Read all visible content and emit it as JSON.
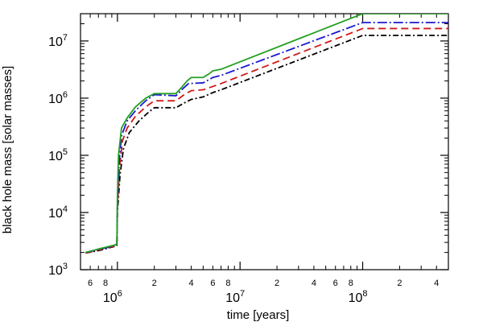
{
  "chart_data": {
    "type": "line",
    "title": "",
    "xlabel": "time [years]",
    "ylabel": "black hole mass [solar masses]",
    "xscale": "log",
    "yscale": "log",
    "xlim": [
      500000,
      500000000
    ],
    "ylim": [
      1000,
      30000000
    ],
    "grid": false,
    "legend": "none",
    "x_major_ticks": [
      {
        "value": 1000000,
        "base": "10",
        "exp": "6"
      },
      {
        "value": 10000000,
        "base": "10",
        "exp": "7"
      },
      {
        "value": 100000000,
        "base": "10",
        "exp": "8"
      }
    ],
    "x_minor_ticks": [
      {
        "value": 600000,
        "label": "6"
      },
      {
        "value": 800000,
        "label": "8"
      },
      {
        "value": 2000000,
        "label": "2"
      },
      {
        "value": 4000000,
        "label": "4"
      },
      {
        "value": 6000000,
        "label": "6"
      },
      {
        "value": 8000000,
        "label": "8"
      },
      {
        "value": 20000000,
        "label": "2"
      },
      {
        "value": 40000000,
        "label": "4"
      },
      {
        "value": 60000000,
        "label": "6"
      },
      {
        "value": 80000000,
        "label": "8"
      },
      {
        "value": 200000000,
        "label": "2"
      },
      {
        "value": 400000000,
        "label": "4"
      }
    ],
    "y_major_ticks": [
      {
        "value": 1000,
        "base": "10",
        "exp": "3"
      },
      {
        "value": 10000,
        "base": "10",
        "exp": "4"
      },
      {
        "value": 100000,
        "base": "10",
        "exp": "5"
      },
      {
        "value": 1000000,
        "base": "10",
        "exp": "6"
      },
      {
        "value": 10000000,
        "base": "10",
        "exp": "7"
      }
    ],
    "series": [
      {
        "color": "#22a022",
        "dash": "solid",
        "points": [
          [
            550000,
            2000
          ],
          [
            700000,
            2300
          ],
          [
            950000,
            2700
          ],
          [
            990000,
            2800
          ],
          [
            1000000,
            20000
          ],
          [
            1020000,
            100000
          ],
          [
            1080000,
            300000
          ],
          [
            1200000,
            450000
          ],
          [
            1400000,
            700000
          ],
          [
            1700000,
            1000000
          ],
          [
            2000000,
            1200000
          ],
          [
            3000000,
            1200000
          ],
          [
            3300000,
            1500000
          ],
          [
            3700000,
            2000000
          ],
          [
            4000000,
            2300000
          ],
          [
            5000000,
            2300000
          ],
          [
            5500000,
            2600000
          ],
          [
            6000000,
            3000000
          ],
          [
            7000000,
            3200000
          ],
          [
            100000000,
            30000000
          ],
          [
            500000000,
            30000000
          ]
        ]
      },
      {
        "color": "#1a1ad0",
        "dash": "long-dash-dot",
        "points": [
          [
            550000,
            2000
          ],
          [
            700000,
            2250
          ],
          [
            950000,
            2650
          ],
          [
            990000,
            2700
          ],
          [
            1000000,
            15000
          ],
          [
            1030000,
            70000
          ],
          [
            1080000,
            220000
          ],
          [
            1200000,
            400000
          ],
          [
            1400000,
            600000
          ],
          [
            1700000,
            900000
          ],
          [
            2000000,
            1150000
          ],
          [
            3000000,
            1100000
          ],
          [
            3400000,
            1450000
          ],
          [
            3800000,
            1800000
          ],
          [
            5000000,
            1850000
          ],
          [
            6000000,
            2300000
          ],
          [
            7000000,
            2500000
          ],
          [
            100000000,
            21000000
          ],
          [
            500000000,
            21000000
          ]
        ]
      },
      {
        "color": "#d01a1a",
        "dash": "dash",
        "points": [
          [
            550000,
            1950
          ],
          [
            700000,
            2200
          ],
          [
            950000,
            2600
          ],
          [
            990000,
            2650
          ],
          [
            1000000,
            12000
          ],
          [
            1040000,
            60000
          ],
          [
            1100000,
            180000
          ],
          [
            1200000,
            300000
          ],
          [
            1400000,
            480000
          ],
          [
            1700000,
            700000
          ],
          [
            2000000,
            900000
          ],
          [
            3000000,
            900000
          ],
          [
            3500000,
            1150000
          ],
          [
            4000000,
            1350000
          ],
          [
            5000000,
            1400000
          ],
          [
            6000000,
            1600000
          ],
          [
            7000000,
            1800000
          ],
          [
            100000000,
            16500000
          ],
          [
            500000000,
            16500000
          ]
        ]
      },
      {
        "color": "#000000",
        "dash": "dash-dot",
        "points": [
          [
            550000,
            1950
          ],
          [
            700000,
            2150
          ],
          [
            950000,
            2550
          ],
          [
            990000,
            2600
          ],
          [
            1000000,
            10000
          ],
          [
            1050000,
            45000
          ],
          [
            1120000,
            130000
          ],
          [
            1250000,
            250000
          ],
          [
            1500000,
            400000
          ],
          [
            1800000,
            570000
          ],
          [
            2000000,
            680000
          ],
          [
            3000000,
            680000
          ],
          [
            3600000,
            850000
          ],
          [
            4000000,
            950000
          ],
          [
            5000000,
            1050000
          ],
          [
            6000000,
            1250000
          ],
          [
            7000000,
            1400000
          ],
          [
            100000000,
            12500000
          ],
          [
            500000000,
            12500000
          ]
        ]
      }
    ]
  }
}
